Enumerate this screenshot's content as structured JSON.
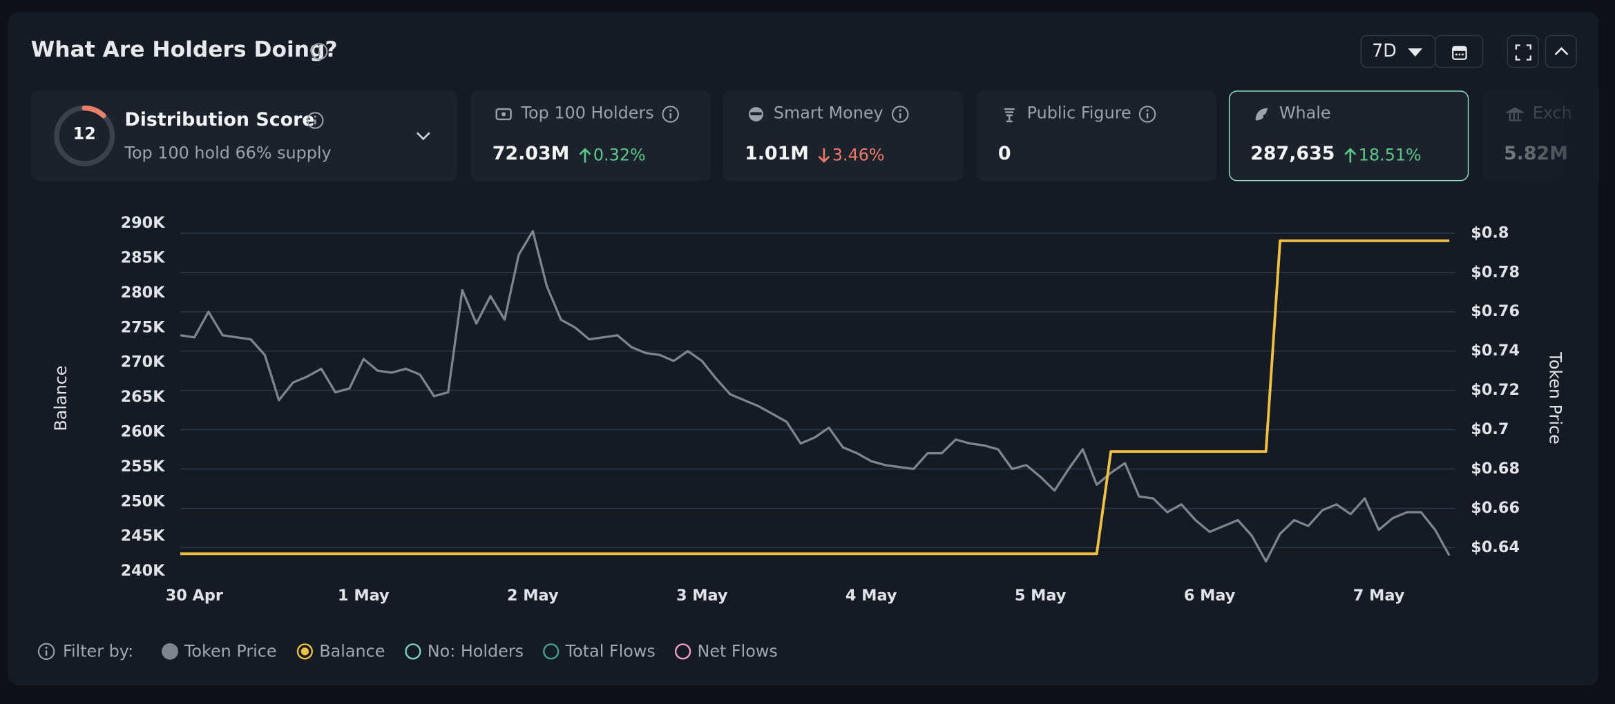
{
  "header": {
    "title": "What Are Holders Doing?",
    "range": "7D"
  },
  "distribution": {
    "title": "Distribution Score",
    "subtitle": "Top 100 hold 66% supply",
    "score": 12,
    "gauge_lim": [
      0,
      100
    ]
  },
  "metrics": [
    {
      "label": "Top 100 Holders",
      "value": "72.03M",
      "change": "0.32%",
      "trend": "up"
    },
    {
      "label": "Smart Money",
      "value": "1.01M",
      "change": "3.46%",
      "trend": "down"
    },
    {
      "label": "Public Figure",
      "value": "0"
    },
    {
      "label": "Whale",
      "value": "287,635",
      "change": "18.51%",
      "trend": "up",
      "selected": true
    },
    {
      "label": "Exch",
      "value": "5.82M"
    }
  ],
  "chart_data": {
    "type": "line",
    "ylabel": "Balance",
    "y2label": "Token Price",
    "grid": true,
    "categories": [
      null,
      "30 Apr",
      null,
      null,
      null,
      null,
      null,
      null,
      null,
      null,
      null,
      null,
      null,
      "1 May",
      null,
      null,
      null,
      null,
      null,
      null,
      null,
      null,
      null,
      null,
      null,
      "2 May",
      null,
      null,
      null,
      null,
      null,
      null,
      null,
      null,
      null,
      null,
      null,
      "3 May",
      null,
      null,
      null,
      null,
      null,
      null,
      null,
      null,
      null,
      null,
      null,
      "4 May",
      null,
      null,
      null,
      null,
      null,
      null,
      null,
      null,
      null,
      null,
      null,
      "5 May",
      null,
      null,
      null,
      null,
      null,
      null,
      null,
      null,
      null,
      null,
      null,
      "6 May",
      null,
      null,
      null,
      null,
      null,
      null,
      null,
      null,
      null,
      null,
      null,
      "7 May",
      null,
      null,
      null,
      null,
      null
    ],
    "series": [
      {
        "name": "Token Price",
        "color": "#7d8590",
        "axis": "y2",
        "values": [
          0.748,
          0.747,
          0.76,
          0.748,
          0.747,
          0.746,
          0.738,
          0.715,
          0.724,
          0.727,
          0.731,
          0.719,
          0.721,
          0.736,
          0.73,
          0.729,
          0.731,
          0.728,
          0.717,
          0.719,
          0.771,
          0.754,
          0.768,
          0.756,
          0.789,
          0.801,
          0.773,
          0.756,
          0.752,
          0.746,
          0.747,
          0.748,
          0.742,
          0.739,
          0.738,
          0.735,
          0.74,
          0.735,
          0.726,
          0.718,
          0.715,
          0.712,
          0.708,
          0.704,
          0.693,
          0.696,
          0.701,
          0.691,
          0.688,
          0.684,
          0.682,
          0.681,
          0.68,
          0.688,
          0.688,
          0.695,
          0.693,
          0.692,
          0.69,
          0.68,
          0.682,
          0.676,
          0.669,
          0.68,
          0.69,
          0.672,
          0.678,
          0.683,
          0.666,
          0.665,
          0.658,
          0.662,
          0.654,
          0.648,
          0.651,
          0.654,
          0.646,
          0.633,
          0.647,
          0.654,
          0.651,
          0.659,
          0.662,
          0.657,
          0.665,
          0.649,
          0.655,
          0.658,
          0.658,
          0.649,
          0.636
        ]
      },
      {
        "name": "Balance",
        "color": "#f0c043",
        "values": [
          242500,
          242500,
          242500,
          242500,
          242500,
          242500,
          242500,
          242500,
          242500,
          242500,
          242500,
          242500,
          242500,
          242500,
          242500,
          242500,
          242500,
          242500,
          242500,
          242500,
          242500,
          242500,
          242500,
          242500,
          242500,
          242500,
          242500,
          242500,
          242500,
          242500,
          242500,
          242500,
          242500,
          242500,
          242500,
          242500,
          242500,
          242500,
          242500,
          242500,
          242500,
          242500,
          242500,
          242500,
          242500,
          242500,
          242500,
          242500,
          242500,
          242500,
          242500,
          242500,
          242500,
          242500,
          242500,
          242500,
          242500,
          242500,
          242500,
          242500,
          242500,
          242500,
          242500,
          242500,
          242500,
          242500,
          257200,
          257200,
          257200,
          257200,
          257200,
          257200,
          257200,
          257200,
          257200,
          257200,
          257200,
          257200,
          287500,
          287500,
          287500,
          287500,
          287500,
          287500,
          287500,
          287500,
          287500,
          287500,
          287500,
          287500,
          287500
        ]
      }
    ],
    "ylim": [
      240000,
      290000
    ],
    "yticks": [
      {
        "value": 240000,
        "label": "240K"
      },
      {
        "value": 245000,
        "label": "245K"
      },
      {
        "value": 250000,
        "label": "250K"
      },
      {
        "value": 255000,
        "label": "255K"
      },
      {
        "value": 260000,
        "label": "260K"
      },
      {
        "value": 265000,
        "label": "265K"
      },
      {
        "value": 270000,
        "label": "270K"
      },
      {
        "value": 275000,
        "label": "275K"
      },
      {
        "value": 280000,
        "label": "280K"
      },
      {
        "value": 285000,
        "label": "285K"
      },
      {
        "value": 290000,
        "label": "290K"
      }
    ],
    "y2lim": [
      0.628,
      0.805
    ],
    "y2ticks": [
      {
        "value": 0.64,
        "label": "$0.64"
      },
      {
        "value": 0.66,
        "label": "$0.66"
      },
      {
        "value": 0.68,
        "label": "$0.68"
      },
      {
        "value": 0.7,
        "label": "$0.7"
      },
      {
        "value": 0.72,
        "label": "$0.72"
      },
      {
        "value": 0.74,
        "label": "$0.74"
      },
      {
        "value": 0.76,
        "label": "$0.76"
      },
      {
        "value": 0.78,
        "label": "$0.78"
      },
      {
        "value": 0.8,
        "label": "$0.8"
      }
    ]
  },
  "filter": {
    "label": "Filter by:",
    "options": [
      {
        "name": "No: Holders",
        "color": "#7dd3c0"
      },
      {
        "name": "Total Flows",
        "color": "#3fa38f"
      },
      {
        "name": "Net Flows",
        "color": "#f0a0c8"
      }
    ]
  }
}
